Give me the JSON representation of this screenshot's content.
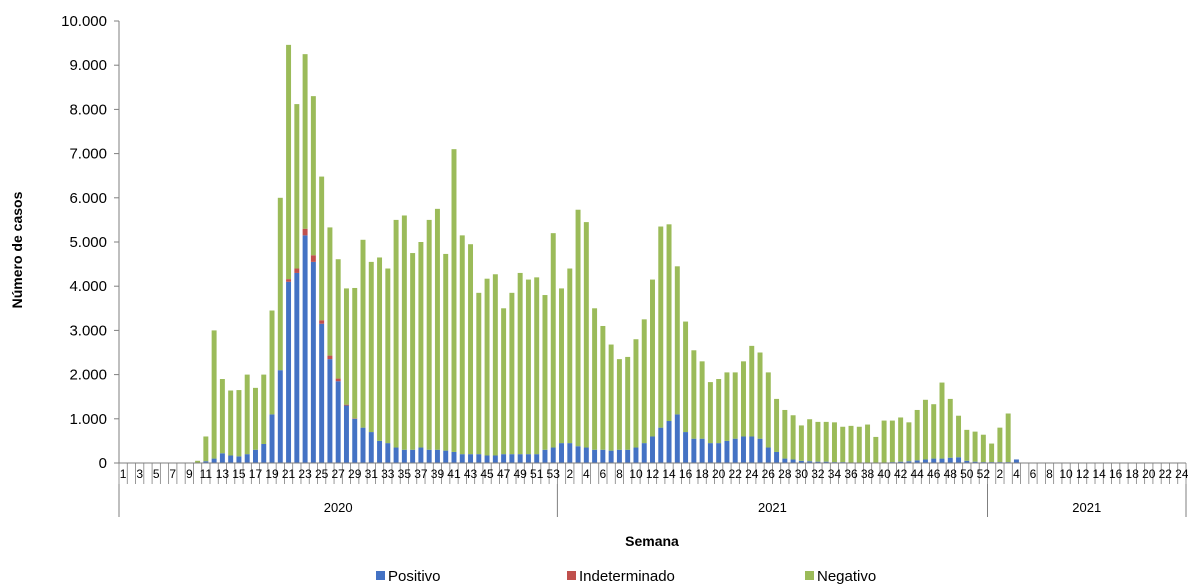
{
  "chart_data": {
    "type": "bar",
    "stacked": true,
    "xlabel": "Semana",
    "ylabel": "Número de casos",
    "ylim": [
      0,
      10000
    ],
    "y_ticks": [
      0,
      1000,
      2000,
      3000,
      4000,
      5000,
      6000,
      7000,
      8000,
      9000,
      10000
    ],
    "y_tick_labels": [
      "0",
      "1.000",
      "2.000",
      "3.000",
      "4.000",
      "5.000",
      "6.000",
      "7.000",
      "8.000",
      "9.000",
      "10.000"
    ],
    "legend_position": "bottom",
    "groups": [
      {
        "label": "2020",
        "start_week": 1,
        "end_week": 53
      },
      {
        "label": "2021",
        "start_week": 1,
        "end_week": 52
      },
      {
        "label": "2021",
        "start_week": 1,
        "end_week": 24
      }
    ],
    "x_tick_labels": [
      "1",
      "3",
      "5",
      "7",
      "9",
      "11",
      "13",
      "15",
      "17",
      "19",
      "21",
      "23",
      "25",
      "27",
      "29",
      "31",
      "33",
      "35",
      "37",
      "39",
      "41",
      "43",
      "45",
      "47",
      "49",
      "51",
      "53",
      "2",
      "4",
      "6",
      "8",
      "10",
      "12",
      "14",
      "16",
      "18",
      "20",
      "22",
      "24",
      "26",
      "28",
      "30",
      "32",
      "34",
      "36",
      "38",
      "40",
      "42",
      "44",
      "46",
      "48",
      "50",
      "52",
      "2",
      "4",
      "6",
      "8",
      "10",
      "12",
      "14",
      "16",
      "18",
      "20",
      "22",
      "24"
    ],
    "series": [
      {
        "name": "Positivo",
        "color": "#4472C4",
        "values": [
          0,
          0,
          0,
          0,
          0,
          0,
          0,
          0,
          0,
          0,
          40,
          100,
          220,
          170,
          150,
          200,
          300,
          430,
          1100,
          2100,
          4100,
          4300,
          5150,
          4550,
          3150,
          2350,
          1850,
          1300,
          1000,
          800,
          700,
          500,
          450,
          350,
          300,
          300,
          350,
          300,
          300,
          280,
          250,
          200,
          200,
          200,
          170,
          170,
          200,
          200,
          200,
          200,
          200,
          300,
          350,
          450,
          450,
          380,
          350,
          300,
          300,
          280,
          300,
          300,
          350,
          450,
          600,
          800,
          950,
          1100,
          700,
          550,
          550,
          450,
          450,
          500,
          550,
          600,
          600,
          550,
          350,
          250,
          100,
          80,
          50,
          40,
          30,
          30,
          20,
          20,
          10,
          10,
          10,
          10,
          10,
          20,
          30,
          40,
          60,
          80,
          100,
          100,
          120,
          130,
          50,
          30,
          20,
          20,
          20,
          20,
          80,
          0,
          0,
          0,
          0,
          0,
          0,
          0,
          0,
          0,
          0,
          0,
          0,
          0,
          0,
          0,
          0,
          0,
          0,
          0,
          0,
          0,
          0,
          0,
          0,
          0
        ]
      },
      {
        "name": "Indeterminado",
        "color": "#C0504D",
        "values": [
          0,
          0,
          0,
          0,
          0,
          0,
          0,
          0,
          0,
          0,
          0,
          0,
          0,
          0,
          0,
          0,
          0,
          0,
          0,
          0,
          60,
          100,
          150,
          150,
          80,
          80,
          60,
          20,
          10,
          0,
          0,
          0,
          0,
          0,
          0,
          0,
          0,
          0,
          0,
          0,
          0,
          0,
          0,
          0,
          0,
          0,
          0,
          0,
          0,
          0,
          0,
          0,
          0,
          0,
          0,
          0,
          0,
          0,
          0,
          0,
          0,
          0,
          0,
          0,
          0,
          0,
          0,
          0,
          0,
          0,
          0,
          0,
          0,
          0,
          0,
          0,
          0,
          0,
          0,
          0,
          0,
          0,
          0,
          0,
          0,
          0,
          0,
          0,
          0,
          0,
          0,
          0,
          0,
          0,
          0,
          0,
          0,
          0,
          0,
          0,
          0,
          0,
          0,
          0,
          0,
          0,
          0,
          0,
          0,
          0,
          0,
          0,
          0,
          0,
          0,
          0,
          0,
          0,
          0,
          0,
          0,
          0,
          0,
          0,
          0,
          0,
          0,
          0,
          0,
          0
        ]
      },
      {
        "name": "Negativo",
        "color": "#9BBB59",
        "values": [
          0,
          0,
          0,
          0,
          0,
          0,
          0,
          0,
          0,
          50,
          560,
          2900,
          1680,
          1470,
          1500,
          1800,
          1400,
          1570,
          2350,
          3900,
          5300,
          3720,
          3950,
          3600,
          3250,
          2900,
          2700,
          2630,
          2950,
          4250,
          3850,
          4150,
          3950,
          5150,
          5300,
          4450,
          4650,
          5200,
          5450,
          4450,
          6850,
          4950,
          4750,
          3650,
          4000,
          4100,
          3300,
          3650,
          4100,
          3950,
          4000,
          3500,
          4850,
          3500,
          3950,
          5350,
          5100,
          3200,
          2800,
          2400,
          2050,
          2100,
          2450,
          2800,
          3550,
          4550,
          4450,
          3350,
          2500,
          2000,
          1750,
          1380,
          1450,
          1550,
          1500,
          1700,
          2050,
          1950,
          1700,
          1200,
          1100,
          1000,
          800,
          950,
          900,
          900,
          900,
          800,
          830,
          810,
          860,
          580,
          950,
          940,
          1000,
          880,
          1140,
          1350,
          1230,
          1720,
          1330,
          940,
          700,
          680,
          620,
          420,
          780,
          1100,
          0,
          0,
          0,
          0,
          0,
          0,
          0,
          0,
          0,
          0,
          0,
          0,
          0,
          0,
          0,
          0,
          0,
          0,
          0,
          0,
          0,
          0,
          0,
          0,
          0
        ]
      }
    ]
  }
}
